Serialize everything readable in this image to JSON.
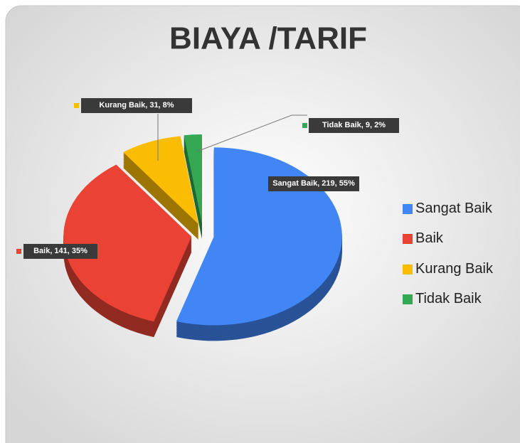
{
  "chart_data": {
    "type": "pie",
    "title": "BIAYA /TARIF",
    "categories": [
      "Sangat Baik",
      "Baik",
      "Kurang Baik",
      "Tidak Baik"
    ],
    "values": [
      219,
      141,
      31,
      9
    ],
    "value_labels": [
      "Sangat Baik, 219, 55%",
      "Baik, 141, 35%",
      "Kurang Baik, 31, 8%",
      "Tidak Baik, 9, 2%"
    ],
    "colors": [
      "#4285f4",
      "#ea4335",
      "#fbbc04",
      "#34a853"
    ],
    "legend": "right"
  }
}
